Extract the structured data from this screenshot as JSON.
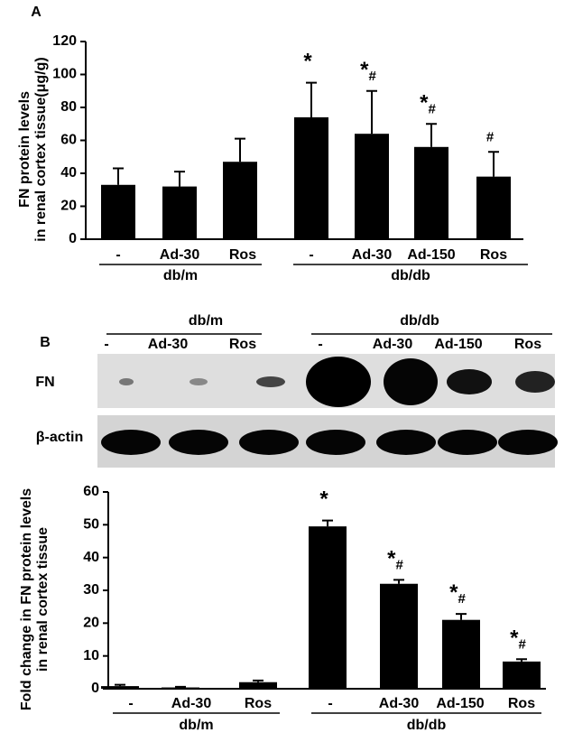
{
  "chart_data": [
    {
      "type": "bar",
      "panel_label": "A",
      "y_label": [
        "FN protein levels",
        "in renal cortex tissue(μg/g)"
      ],
      "categories": [
        "-",
        "Ad-30",
        "Ros",
        "-",
        "Ad-30",
        "Ad-150",
        "Ros"
      ],
      "groups": [
        "db/m",
        "db/db"
      ],
      "values": [
        33,
        32,
        47,
        74,
        64,
        56,
        38
      ],
      "errors": [
        10,
        9,
        14,
        21,
        26,
        14,
        15
      ],
      "annotations": [
        null,
        null,
        null,
        "*",
        "*#",
        "*#",
        "#"
      ],
      "color": "#000000",
      "ylim": [
        0,
        120
      ],
      "yticks": [
        0,
        20,
        40,
        60,
        80,
        100,
        120
      ]
    },
    {
      "type": "bar",
      "y_label": [
        "Fold change in FN protein levels",
        "in renal cortex tissue"
      ],
      "categories": [
        "-",
        "Ad-30",
        "Ros",
        "-",
        "Ad-30",
        "Ad-150",
        "Ros"
      ],
      "groups": [
        "db/m",
        "db/db"
      ],
      "values": [
        0.8,
        0.4,
        2,
        49.5,
        32,
        21,
        8.3
      ],
      "errors": [
        0.4,
        0.2,
        0.5,
        1.8,
        1.2,
        1.8,
        0.7
      ],
      "annotations": [
        null,
        null,
        null,
        "*",
        "*#",
        "*#",
        "*#"
      ],
      "color": "#000000",
      "ylim": [
        0,
        60
      ],
      "yticks": [
        0,
        10,
        20,
        30,
        40,
        50,
        60
      ]
    }
  ],
  "blot": {
    "panel_label": "B",
    "groups": [
      "db/m",
      "db/db"
    ],
    "lanes": [
      "-",
      "Ad-30",
      "Ros",
      "-",
      "Ad-30",
      "Ad-150",
      "Ros"
    ],
    "rows": [
      "FN",
      "β-actin"
    ]
  }
}
